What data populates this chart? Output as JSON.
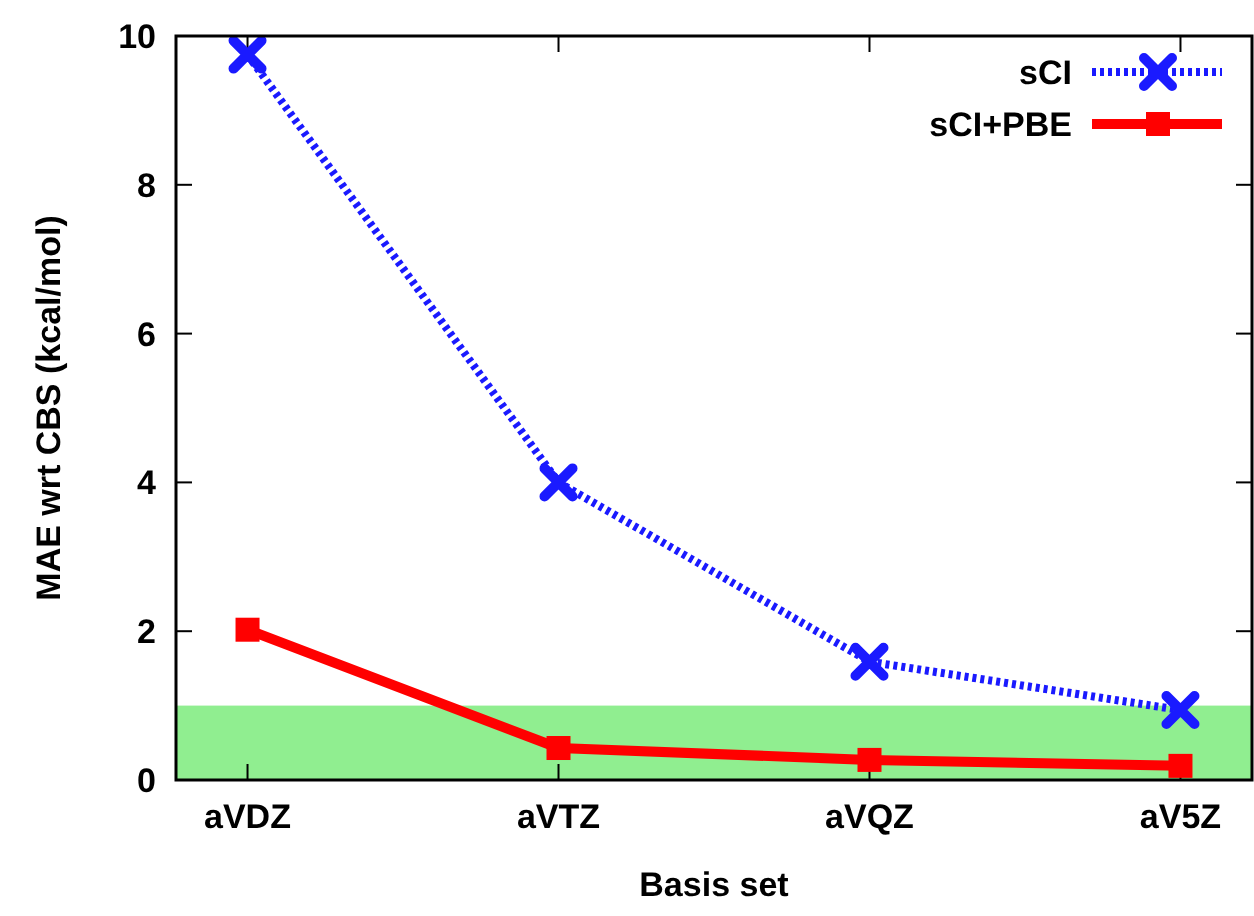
{
  "chart_data": {
    "type": "line",
    "xlabel": "Basis set",
    "ylabel": "MAE wrt CBS (kcal/mol)",
    "categories": [
      "aVDZ",
      "aVTZ",
      "aVQZ",
      "aV5Z"
    ],
    "series": [
      {
        "name": "sCI",
        "color": "#1a1aff",
        "values": [
          9.75,
          4.0,
          1.59,
          0.94
        ],
        "marker": "cross",
        "line_style": "dotted"
      },
      {
        "name": "sCI+PBE",
        "color": "#ff0000",
        "values": [
          2.02,
          0.43,
          0.27,
          0.19
        ],
        "marker": "square",
        "line_style": "solid"
      }
    ],
    "ylim": [
      0,
      10
    ],
    "yticks": [
      0,
      2,
      4,
      6,
      8,
      10
    ],
    "grid": false,
    "legend": "top right",
    "bands": [
      {
        "axis": "y",
        "from": 0,
        "to": 1,
        "color": "#90ee90"
      }
    ]
  }
}
